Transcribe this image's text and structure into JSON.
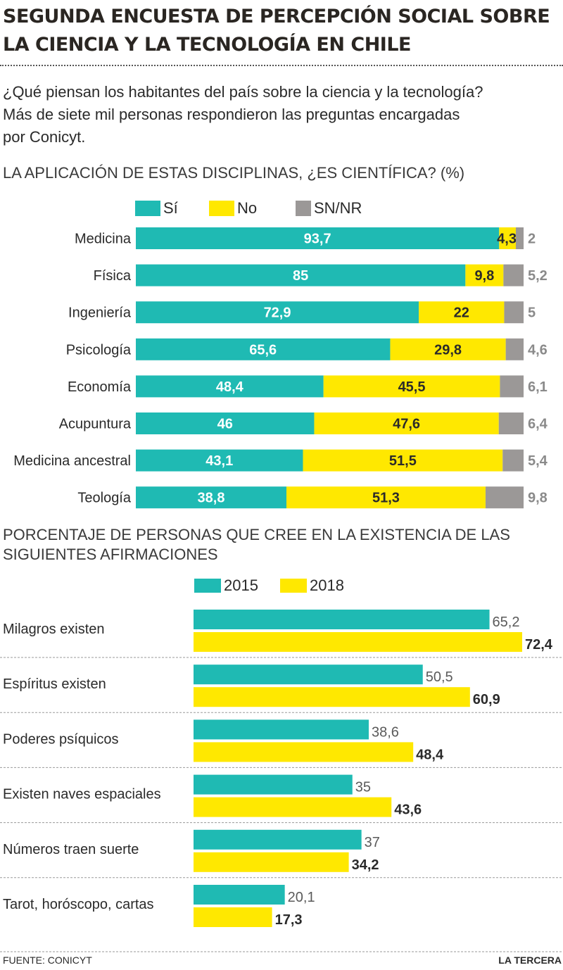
{
  "header": {
    "title_line1": "SEGUNDA ENCUESTA DE PERCEPCIÓN SOCIAL SOBRE",
    "title_line2": "LA CIENCIA Y LA TECNOLOGÍA EN CHILE",
    "subtitle_line1": "¿Qué piensan los habitantes del país sobre la ciencia y la tecnología?",
    "subtitle_line2": "Más de siete mil personas respondieron las preguntas encargadas",
    "subtitle_line3": "por Conicyt."
  },
  "colors": {
    "teal": "#1fbab3",
    "yellow": "#ffe800",
    "gray": "#9b9897",
    "text": "#2a2a2a",
    "label_gray": "#8a8a8a"
  },
  "chart_data": [
    {
      "type": "bar",
      "orientation": "horizontal",
      "stacked": true,
      "title": "LA APLICACIÓN DE ESTAS DISCIPLINAS, ¿ES CIENTÍFICA? (%)",
      "categories": [
        "Medicina",
        "Física",
        "Ingeniería",
        "Psicología",
        "Economía",
        "Acupuntura",
        "Medicina ancestral",
        "Teología"
      ],
      "series": [
        {
          "name": "Sí",
          "color": "#1fbab3",
          "values": [
            93.7,
            85,
            72.9,
            65.6,
            48.4,
            46,
            43.1,
            38.8
          ],
          "labels": [
            "93,7",
            "85",
            "72,9",
            "65,6",
            "48,4",
            "46",
            "43,1",
            "38,8"
          ]
        },
        {
          "name": "No",
          "color": "#ffe800",
          "values": [
            4.3,
            9.8,
            22,
            29.8,
            45.5,
            47.6,
            51.5,
            51.3
          ],
          "labels": [
            "4,3",
            "9,8",
            "22",
            "29,8",
            "45,5",
            "47,6",
            "51,5",
            "51,3"
          ]
        },
        {
          "name": "SN/NR",
          "color": "#9b9897",
          "values": [
            2,
            5.2,
            5,
            4.6,
            6.1,
            6.4,
            5.4,
            9.8
          ],
          "labels": [
            "2",
            "5,2",
            "5",
            "4,6",
            "6,1",
            "6,4",
            "5,4",
            "9,8"
          ]
        }
      ],
      "xlim": [
        0,
        100
      ],
      "legend_position": "top"
    },
    {
      "type": "bar",
      "orientation": "horizontal",
      "title": "PORCENTAJE DE PERSONAS QUE CREE EN LA EXISTENCIA DE LAS SIGUIENTES AFIRMACIONES",
      "categories": [
        "Milagros existen",
        "Espíritus existen",
        "Poderes psíquicos",
        "Existen naves espaciales",
        "Números traen suerte",
        "Tarot, horóscopo, cartas"
      ],
      "series": [
        {
          "name": "2015",
          "color": "#1fbab3",
          "values": [
            65.2,
            50.5,
            38.6,
            35,
            37,
            20.1
          ],
          "labels": [
            "65,2",
            "50,5",
            "38,6",
            "35",
            "37",
            "20,1"
          ]
        },
        {
          "name": "2018",
          "color": "#ffe800",
          "values": [
            72.4,
            60.9,
            48.4,
            43.6,
            34.2,
            17.3
          ],
          "labels": [
            "72,4",
            "60,9",
            "48,4",
            "43,6",
            "34,2",
            "17,3"
          ]
        }
      ],
      "xlim": [
        0,
        100
      ],
      "legend_position": "top"
    }
  ],
  "footer": {
    "source": "FUENTE: CONICYT",
    "brand": "LA TERCERA"
  }
}
